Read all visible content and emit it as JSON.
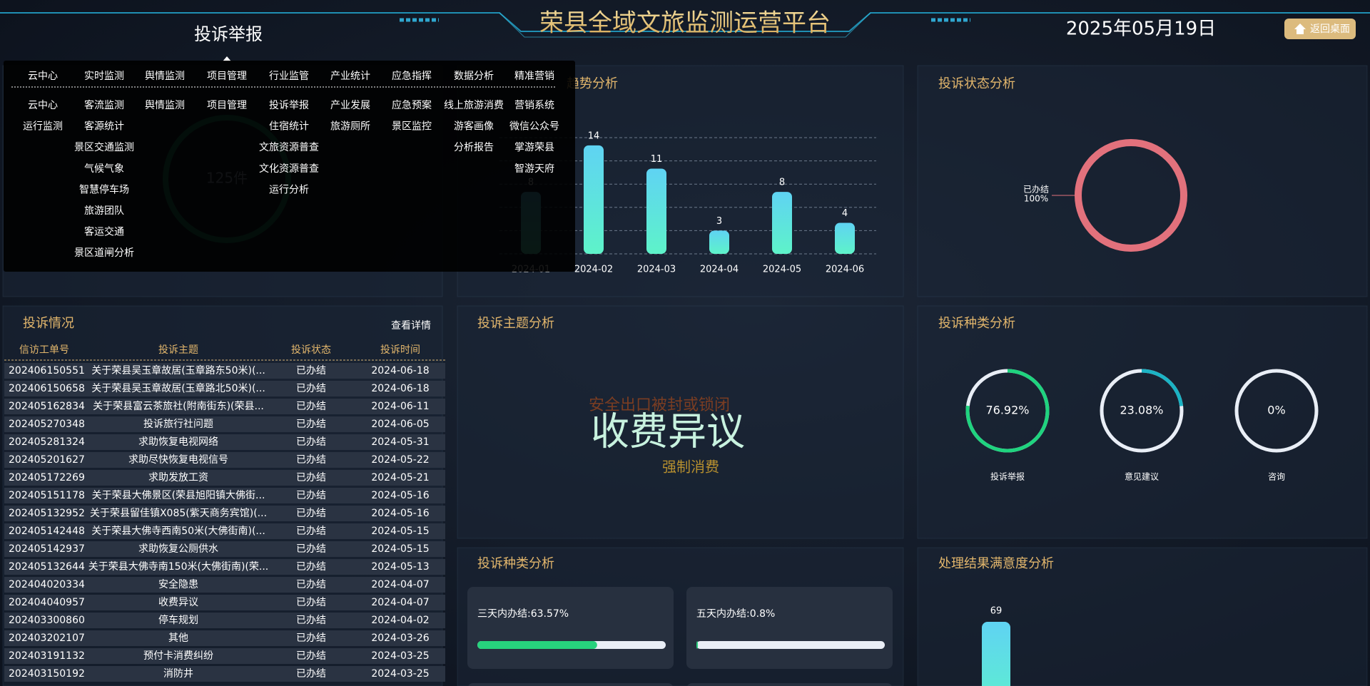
{
  "header": {
    "title": "荣县全域文旅监测运营平台",
    "date": "2025年05月19日",
    "back_button": "返回桌面",
    "current_menu": "投诉举报"
  },
  "menu": {
    "top": [
      "云中心",
      "实时监测",
      "舆情监测",
      "项目管理",
      "行业监管",
      "产业统计",
      "应急指挥",
      "数据分析",
      "精准营销"
    ],
    "columns": [
      [
        "云中心",
        "运行监测"
      ],
      [
        "客流监测",
        "客源统计",
        "景区交通监测",
        "气候气象",
        "智慧停车场",
        "旅游团队",
        "客运交通",
        "景区道闸分析"
      ],
      [
        "舆情监测"
      ],
      [
        "项目管理"
      ],
      [
        "投诉举报",
        "住宿统计",
        "文旅资源普查",
        "文化资源普查",
        "运行分析"
      ],
      [
        "产业发展",
        "旅游厕所"
      ],
      [
        "应急预案",
        "景区监控"
      ],
      [
        "线上旅游消费",
        "游客画像",
        "分析报告"
      ],
      [
        "营销系统",
        "微信公众号",
        "掌游荣县",
        "智游天府"
      ]
    ]
  },
  "gauge_panel": {
    "value_text": "125件"
  },
  "complaints": {
    "title": "投诉情况",
    "link": "查看详情",
    "columns": [
      "信访工单号",
      "投诉主题",
      "投诉状态",
      "投诉时间"
    ],
    "rows": [
      [
        "202406150551",
        "关于荣县吴玉章故居(玉章路东50米)(...",
        "已办结",
        "2024-06-18"
      ],
      [
        "202406150658",
        "关于荣县吴玉章故居(玉章路北50米)(...",
        "已办结",
        "2024-06-18"
      ],
      [
        "202405162834",
        "关于荣县富云茶旅社(附南街东)(荣县...",
        "已办结",
        "2024-06-11"
      ],
      [
        "202405270348",
        "投诉旅行社问题",
        "已办结",
        "2024-06-05"
      ],
      [
        "202405281324",
        "求助恢复电视网络",
        "已办结",
        "2024-05-31"
      ],
      [
        "202405201627",
        "求助尽快恢复电视信号",
        "已办结",
        "2024-05-22"
      ],
      [
        "202405172269",
        "求助发放工资",
        "已办结",
        "2024-05-21"
      ],
      [
        "202405151178",
        "关于荣县大佛景区(荣县旭阳镇大佛街...",
        "已办结",
        "2024-05-16"
      ],
      [
        "202405132952",
        "关于荣县留佳镇X085(紫天商务宾馆)(...",
        "已办结",
        "2024-05-16"
      ],
      [
        "202405142448",
        "关于荣县大佛寺西南50米(大佛街南)(...",
        "已办结",
        "2024-05-15"
      ],
      [
        "202405142937",
        "求助恢复公厕供水",
        "已办结",
        "2024-05-15"
      ],
      [
        "202405132644",
        "关于荣县大佛寺南150米(大佛街南)(荣...",
        "已办结",
        "2024-05-13"
      ],
      [
        "202404020334",
        "安全隐患",
        "已办结",
        "2024-04-07"
      ],
      [
        "202404040957",
        "收费异议",
        "已办结",
        "2024-04-07"
      ],
      [
        "202403300860",
        "停车规划",
        "已办结",
        "2024-04-02"
      ],
      [
        "202403202107",
        "其他",
        "已办结",
        "2024-03-26"
      ],
      [
        "202403191132",
        "预付卡消费纠纷",
        "已办结",
        "2024-03-25"
      ],
      [
        "202403150192",
        "消防井",
        "已办结",
        "2024-03-25"
      ]
    ]
  },
  "topic_cloud": {
    "title": "投诉主题分析",
    "words": [
      "安全出口被封或锁闭",
      "收费异议",
      "强制消费"
    ]
  },
  "chart_data": [
    {
      "type": "bar",
      "title": "趋势分析",
      "categories": [
        "2024-01",
        "2024-02",
        "2024-03",
        "2024-04",
        "2024-05",
        "2024-06"
      ],
      "values": [
        8,
        14,
        11,
        3,
        8,
        4
      ],
      "ylim": [
        0,
        15
      ],
      "yticks": [
        0,
        3,
        6,
        9,
        12,
        15
      ],
      "grid": true,
      "colors": [
        "#5fd3f3",
        "#5ef3c9"
      ]
    },
    {
      "type": "donut",
      "title": "投诉状态分析",
      "categories": [
        "已办结"
      ],
      "values": [
        100
      ],
      "value_labels": [
        "100%"
      ],
      "color": "#e2717c"
    },
    {
      "type": "rings",
      "title": "投诉种类分析",
      "categories": [
        "投诉举报",
        "意见建议",
        "咨询"
      ],
      "values": [
        76.92,
        23.08,
        0
      ],
      "value_labels": [
        "76.92%",
        "23.08%",
        "0%"
      ],
      "colors": [
        "#1fd37f",
        "#1bb3c4",
        "#1bb3c4"
      ],
      "track": "#e9eef6"
    },
    {
      "type": "progress",
      "title": "投诉种类分析",
      "categories": [
        "三天内办结:63.57%",
        "五天内办结:0.8%"
      ],
      "values": [
        63.57,
        0.8
      ],
      "xlim": [
        0,
        100
      ],
      "color": "#27d27d",
      "track": "#e9eef6"
    },
    {
      "type": "bar",
      "title": "处理结果满意度分析",
      "values": [
        69
      ],
      "ylim": [
        0,
        80
      ],
      "colors": [
        "#5fd3f3",
        "#5ef3c9"
      ]
    }
  ]
}
